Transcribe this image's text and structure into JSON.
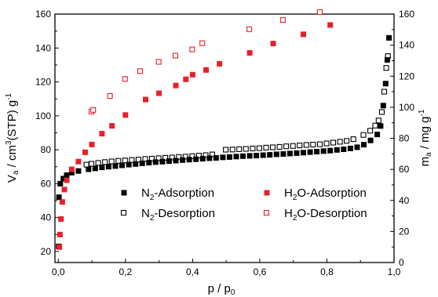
{
  "chart_data": {
    "type": "scatter",
    "xlabel": {
      "main": "p / p",
      "sub": "0"
    },
    "ylabel_left": {
      "main": "V",
      "sub": "a",
      "mid": " / cm",
      "sup": "3",
      "rest": "(STP) g",
      "sup2": "-1"
    },
    "ylabel_right": {
      "main": "m",
      "sub": "a",
      "rest": " / mg g",
      "sup": "-1"
    },
    "x_axis": {
      "min": -0.01,
      "max": 1.0,
      "ticks": [
        0.0,
        0.2,
        0.4,
        0.6,
        0.8,
        1.0
      ],
      "tick_labels": [
        "0,0",
        "0,2",
        "0,4",
        "0,6",
        "0,8",
        "1,0"
      ]
    },
    "y_left": {
      "min": 13.5,
      "max": 160,
      "ticks": [
        20,
        40,
        60,
        80,
        100,
        120,
        140,
        160
      ],
      "tick_labels": [
        "20",
        "40",
        "60",
        "80",
        "100",
        "120",
        "140",
        "160"
      ]
    },
    "y_right": {
      "min": 0,
      "max": 160,
      "ticks": [
        0,
        20,
        40,
        60,
        80,
        100,
        120,
        140,
        160
      ],
      "tick_labels": [
        "0",
        "20",
        "40",
        "60",
        "80",
        "100",
        "120",
        "140",
        "160"
      ]
    },
    "legend": {
      "placement": "center",
      "entries": [
        {
          "series": 0,
          "main": "N",
          "sub": "2",
          "rest": "-Adsorption"
        },
        {
          "series": 2,
          "main": "H",
          "sub": "2",
          "rest": "O-Adsorption"
        },
        {
          "series": 1,
          "main": "N",
          "sub": "2",
          "rest": "-Desorption"
        },
        {
          "series": 3,
          "main": "H",
          "sub": "2",
          "rest": "O-Desorption"
        }
      ]
    },
    "series": [
      {
        "name": "N2-Adsorption",
        "axis": "left",
        "color": "#000000",
        "marker": "filled-square",
        "points": [
          [
            0.001,
            23
          ],
          [
            0.002,
            52
          ],
          [
            0.006,
            60
          ],
          [
            0.015,
            63
          ],
          [
            0.025,
            65
          ],
          [
            0.04,
            66.5
          ],
          [
            0.06,
            67.5
          ],
          [
            0.09,
            68.5
          ],
          [
            0.11,
            69
          ],
          [
            0.13,
            69.6
          ],
          [
            0.15,
            70
          ],
          [
            0.17,
            70.4
          ],
          [
            0.19,
            70.8
          ],
          [
            0.21,
            71.2
          ],
          [
            0.23,
            71.6
          ],
          [
            0.25,
            72
          ],
          [
            0.27,
            72.4
          ],
          [
            0.29,
            72.7
          ],
          [
            0.31,
            73
          ],
          [
            0.33,
            73.3
          ],
          [
            0.35,
            73.6
          ],
          [
            0.37,
            73.9
          ],
          [
            0.39,
            74.2
          ],
          [
            0.41,
            74.4
          ],
          [
            0.43,
            74.7
          ],
          [
            0.45,
            75
          ],
          [
            0.47,
            75.2
          ],
          [
            0.49,
            75.5
          ],
          [
            0.51,
            75.7
          ],
          [
            0.53,
            76
          ],
          [
            0.55,
            76.2
          ],
          [
            0.57,
            76.4
          ],
          [
            0.59,
            76.6
          ],
          [
            0.61,
            76.8
          ],
          [
            0.63,
            77
          ],
          [
            0.65,
            77.3
          ],
          [
            0.67,
            77.5
          ],
          [
            0.69,
            77.8
          ],
          [
            0.71,
            78
          ],
          [
            0.73,
            78.3
          ],
          [
            0.75,
            78.6
          ],
          [
            0.77,
            78.9
          ],
          [
            0.79,
            79.2
          ],
          [
            0.81,
            79.5
          ],
          [
            0.83,
            79.9
          ],
          [
            0.85,
            80.3
          ],
          [
            0.87,
            80.8
          ],
          [
            0.89,
            81.5
          ],
          [
            0.91,
            83
          ],
          [
            0.93,
            85.5
          ],
          [
            0.95,
            89
          ],
          [
            0.96,
            94
          ],
          [
            0.968,
            106
          ],
          [
            0.975,
            119
          ],
          [
            0.98,
            133
          ],
          [
            0.985,
            146
          ]
        ]
      },
      {
        "name": "N2-Desorption",
        "axis": "left",
        "color": "#000000",
        "marker": "open-square",
        "points": [
          [
            0.983,
            135
          ],
          [
            0.978,
            128
          ],
          [
            0.972,
            114
          ],
          [
            0.965,
            102
          ],
          [
            0.955,
            97
          ],
          [
            0.945,
            94
          ],
          [
            0.93,
            91
          ],
          [
            0.91,
            88.5
          ],
          [
            0.88,
            86
          ],
          [
            0.86,
            85
          ],
          [
            0.84,
            84.5
          ],
          [
            0.82,
            84
          ],
          [
            0.8,
            83.5
          ],
          [
            0.78,
            83
          ],
          [
            0.76,
            82.8
          ],
          [
            0.74,
            82.6
          ],
          [
            0.72,
            82.3
          ],
          [
            0.7,
            82
          ],
          [
            0.68,
            81.8
          ],
          [
            0.66,
            81.5
          ],
          [
            0.64,
            81.2
          ],
          [
            0.62,
            81
          ],
          [
            0.6,
            80.7
          ],
          [
            0.58,
            80.5
          ],
          [
            0.56,
            80.3
          ],
          [
            0.54,
            80.1
          ],
          [
            0.52,
            79.9
          ],
          [
            0.5,
            79.8
          ],
          [
            0.46,
            77
          ],
          [
            0.44,
            76.6
          ],
          [
            0.42,
            76.3
          ],
          [
            0.4,
            76
          ],
          [
            0.38,
            75.7
          ],
          [
            0.36,
            75.5
          ],
          [
            0.34,
            75.2
          ],
          [
            0.32,
            75
          ],
          [
            0.3,
            74.8
          ],
          [
            0.28,
            74.5
          ],
          [
            0.26,
            74.3
          ],
          [
            0.24,
            74
          ],
          [
            0.22,
            73.7
          ],
          [
            0.2,
            73.5
          ],
          [
            0.18,
            73.2
          ],
          [
            0.16,
            72.9
          ],
          [
            0.14,
            72.5
          ],
          [
            0.12,
            72
          ],
          [
            0.1,
            71.5
          ],
          [
            0.085,
            71
          ]
        ]
      },
      {
        "name": "H2O-Adsorption",
        "axis": "right",
        "color": "#e8202a",
        "marker": "filled-square",
        "points": [
          [
            0.003,
            10
          ],
          [
            0.005,
            18
          ],
          [
            0.008,
            28
          ],
          [
            0.012,
            39
          ],
          [
            0.018,
            47
          ],
          [
            0.025,
            53
          ],
          [
            0.04,
            60
          ],
          [
            0.06,
            65
          ],
          [
            0.08,
            71
          ],
          [
            0.1,
            76
          ],
          [
            0.13,
            83
          ],
          [
            0.16,
            88
          ],
          [
            0.2,
            95
          ],
          [
            0.26,
            105
          ],
          [
            0.3,
            109
          ],
          [
            0.35,
            114
          ],
          [
            0.38,
            118
          ],
          [
            0.4,
            121
          ],
          [
            0.44,
            124
          ],
          [
            0.48,
            128
          ],
          [
            0.57,
            135
          ],
          [
            0.64,
            141
          ],
          [
            0.73,
            147
          ],
          [
            0.81,
            153
          ]
        ]
      },
      {
        "name": "H2O-Desorption",
        "axis": "right",
        "color": "#e8202a",
        "marker": "open-square",
        "points": [
          [
            0.1,
            97
          ],
          [
            0.105,
            98
          ],
          [
            0.155,
            107
          ],
          [
            0.2,
            118
          ],
          [
            0.245,
            123
          ],
          [
            0.3,
            129
          ],
          [
            0.35,
            133
          ],
          [
            0.4,
            137
          ],
          [
            0.43,
            141
          ],
          [
            0.57,
            150
          ],
          [
            0.67,
            156
          ],
          [
            0.78,
            161
          ]
        ]
      }
    ]
  }
}
